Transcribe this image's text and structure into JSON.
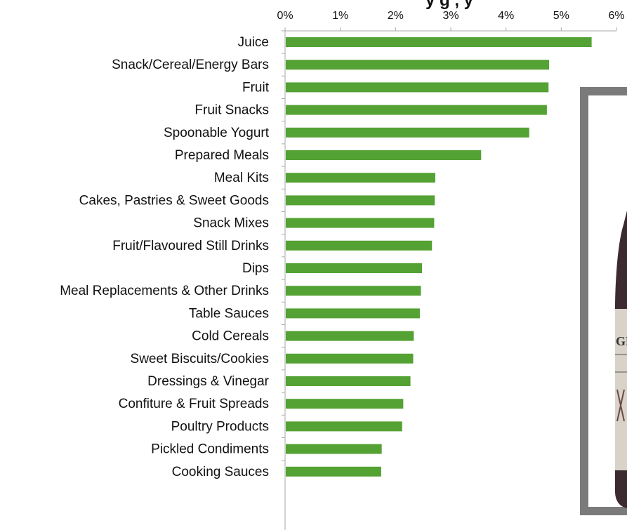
{
  "chart_data": {
    "type": "bar",
    "orientation": "horizontal",
    "title": "y                    g  ,   y",
    "categories": [
      "Juice",
      "Snack/Cereal/Energy Bars",
      "Fruit",
      "Fruit Snacks",
      "Spoonable Yogurt",
      "Prepared Meals",
      "Meal Kits",
      "Cakes, Pastries & Sweet Goods",
      "Snack Mixes",
      "Fruit/Flavoured Still Drinks",
      "Dips",
      "Meal Replacements & Other Drinks",
      "Table Sauces",
      "Cold Cereals",
      "Sweet Biscuits/Cookies",
      "Dressings & Vinegar",
      "Confiture & Fruit Spreads",
      "Poultry Products",
      "Pickled Condiments",
      "Cooking Sauces"
    ],
    "values": [
      5.55,
      4.78,
      4.77,
      4.74,
      4.42,
      3.55,
      2.72,
      2.71,
      2.7,
      2.66,
      2.48,
      2.46,
      2.44,
      2.33,
      2.32,
      2.27,
      2.14,
      2.12,
      1.75,
      1.74
    ],
    "xlim": [
      0,
      6
    ],
    "xticks": [
      "0%",
      "1%",
      "2%",
      "3%",
      "4%",
      "5%",
      "6%"
    ],
    "xticks_position": "top",
    "bar_color": "#54a234",
    "grid": false,
    "legend": false
  },
  "inset_image": {
    "frame_color": "#7a7a7a",
    "partial_text": "GR"
  }
}
